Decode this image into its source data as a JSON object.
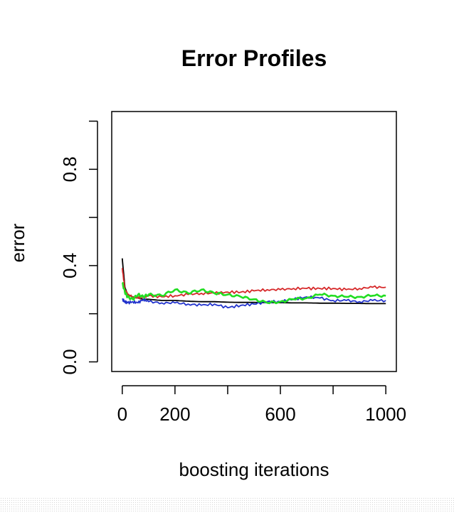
{
  "chart_data": {
    "type": "line",
    "title": "Error Profiles",
    "xlabel": "boosting iterations",
    "ylabel": "error",
    "xlim": [
      -40,
      1040
    ],
    "ylim": [
      -0.04,
      1.04
    ],
    "x_ticks": [
      0,
      200,
      400,
      600,
      800,
      1000
    ],
    "x_tick_labels": [
      "0",
      "200",
      "",
      "600",
      "",
      "1000"
    ],
    "y_ticks": [
      0.0,
      0.2,
      0.4,
      0.6,
      0.8,
      1.0
    ],
    "y_tick_labels": [
      "0.0",
      "",
      "0.4",
      "",
      "0.8",
      ""
    ],
    "grid": false,
    "legend": "none",
    "series": [
      {
        "color": "#000000",
        "x": [
          0,
          10,
          20,
          40,
          60,
          80,
          100,
          150,
          200,
          250,
          300,
          350,
          400,
          450,
          500,
          550,
          600,
          650,
          700,
          750,
          800,
          850,
          900,
          950,
          1000
        ],
        "y": [
          0.43,
          0.31,
          0.28,
          0.27,
          0.265,
          0.26,
          0.26,
          0.255,
          0.255,
          0.252,
          0.25,
          0.25,
          0.248,
          0.247,
          0.247,
          0.246,
          0.246,
          0.245,
          0.245,
          0.244,
          0.244,
          0.243,
          0.243,
          0.242,
          0.242
        ]
      },
      {
        "color": "#d62728",
        "x": [
          0,
          10,
          20,
          40,
          60,
          80,
          100,
          150,
          200,
          250,
          300,
          350,
          400,
          450,
          500,
          550,
          600,
          650,
          700,
          750,
          800,
          850,
          900,
          950,
          1000
        ],
        "y": [
          0.39,
          0.3,
          0.28,
          0.27,
          0.265,
          0.27,
          0.275,
          0.27,
          0.275,
          0.28,
          0.285,
          0.285,
          0.29,
          0.29,
          0.295,
          0.3,
          0.3,
          0.305,
          0.305,
          0.305,
          0.305,
          0.3,
          0.305,
          0.31,
          0.31
        ]
      },
      {
        "color": "#2233cc",
        "x": [
          0,
          10,
          20,
          40,
          60,
          80,
          100,
          150,
          200,
          250,
          300,
          350,
          400,
          450,
          500,
          550,
          600,
          650,
          700,
          750,
          800,
          850,
          900,
          950,
          1000
        ],
        "y": [
          0.26,
          0.25,
          0.245,
          0.25,
          0.245,
          0.26,
          0.25,
          0.245,
          0.245,
          0.24,
          0.235,
          0.24,
          0.225,
          0.235,
          0.24,
          0.25,
          0.25,
          0.26,
          0.27,
          0.265,
          0.255,
          0.255,
          0.25,
          0.255,
          0.255
        ]
      },
      {
        "color": "#22dd22",
        "x": [
          0,
          10,
          20,
          40,
          60,
          80,
          100,
          150,
          200,
          250,
          300,
          350,
          400,
          450,
          500,
          550,
          600,
          650,
          700,
          750,
          800,
          850,
          900,
          950,
          1000
        ],
        "y": [
          0.33,
          0.29,
          0.27,
          0.26,
          0.28,
          0.27,
          0.28,
          0.275,
          0.3,
          0.285,
          0.3,
          0.285,
          0.28,
          0.27,
          0.26,
          0.245,
          0.25,
          0.26,
          0.265,
          0.28,
          0.275,
          0.27,
          0.27,
          0.275,
          0.275
        ]
      }
    ]
  }
}
